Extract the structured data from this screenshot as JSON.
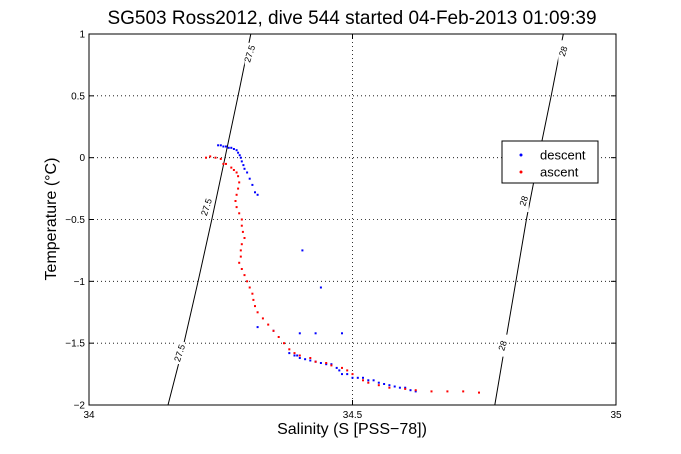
{
  "chart_data": {
    "type": "scatter",
    "title": "SG503 Ross2012, dive 544 started 04-Feb-2013 01:09:39",
    "xlabel": "Salinity (S [PSS−78])",
    "ylabel": "Temperature (°C)",
    "xlim": [
      34,
      35
    ],
    "ylim": [
      -2,
      1
    ],
    "x_ticks": [
      34,
      34.5,
      35
    ],
    "x_tick_labels": [
      "34",
      "34.5",
      "35"
    ],
    "y_ticks": [
      -2,
      -1.5,
      -1,
      -0.5,
      0,
      0.5,
      1
    ],
    "y_tick_labels": [
      "−2",
      "−1.5",
      "−1",
      "−0.5",
      "0",
      "0.5",
      "1"
    ],
    "grid": true,
    "legend_position": "right",
    "contours": [
      {
        "sigma": 27.5,
        "points": [
          [
            34.15,
            -2.0
          ],
          [
            34.18,
            -1.5
          ],
          [
            34.207,
            -1.0
          ],
          [
            34.233,
            -0.5
          ],
          [
            34.258,
            0.0
          ],
          [
            34.283,
            0.5
          ],
          [
            34.307,
            1.0
          ]
        ],
        "labels": [
          {
            "text": "27.5",
            "x": 34.172,
            "y": -1.58
          },
          {
            "text": "27.5",
            "x": 34.223,
            "y": -0.4
          },
          {
            "text": "27.5",
            "x": 34.305,
            "y": 0.84
          }
        ]
      },
      {
        "sigma": 28,
        "points": [
          [
            34.77,
            -2.0
          ],
          [
            34.79,
            -1.5
          ],
          [
            34.81,
            -1.0
          ],
          [
            34.83,
            -0.5
          ],
          [
            34.853,
            0.0
          ],
          [
            34.877,
            0.5
          ],
          [
            34.9,
            1.0
          ]
        ],
        "labels": [
          {
            "text": "28",
            "x": 34.785,
            "y": -1.52
          },
          {
            "text": "28",
            "x": 34.825,
            "y": -0.35
          },
          {
            "text": "28",
            "x": 34.9,
            "y": 0.86
          }
        ]
      }
    ],
    "series": [
      {
        "name": "descent",
        "color": "#0000ff",
        "points": [
          [
            34.245,
            0.1
          ],
          [
            34.25,
            0.1
          ],
          [
            34.255,
            0.09
          ],
          [
            34.26,
            0.09
          ],
          [
            34.265,
            0.08
          ],
          [
            34.27,
            0.08
          ],
          [
            34.275,
            0.07
          ],
          [
            34.28,
            0.06
          ],
          [
            34.283,
            0.04
          ],
          [
            34.286,
            0.02
          ],
          [
            34.288,
            0.0
          ],
          [
            34.29,
            -0.03
          ],
          [
            34.293,
            -0.06
          ],
          [
            34.295,
            -0.09
          ],
          [
            34.3,
            -0.12
          ],
          [
            34.305,
            -0.17
          ],
          [
            34.31,
            -0.22
          ],
          [
            34.315,
            -0.28
          ],
          [
            34.32,
            -0.3
          ],
          [
            34.405,
            -0.75
          ],
          [
            34.44,
            -1.05
          ],
          [
            34.32,
            -1.37
          ],
          [
            34.35,
            -1.4
          ],
          [
            34.4,
            -1.42
          ],
          [
            34.43,
            -1.42
          ],
          [
            34.48,
            -1.42
          ],
          [
            34.38,
            -1.58
          ],
          [
            34.39,
            -1.6
          ],
          [
            34.395,
            -1.6
          ],
          [
            34.4,
            -1.62
          ],
          [
            34.41,
            -1.63
          ],
          [
            34.42,
            -1.64
          ],
          [
            34.43,
            -1.65
          ],
          [
            34.44,
            -1.66
          ],
          [
            34.45,
            -1.67
          ],
          [
            34.46,
            -1.67
          ],
          [
            34.47,
            -1.7
          ],
          [
            34.475,
            -1.72
          ],
          [
            34.48,
            -1.75
          ],
          [
            34.49,
            -1.75
          ],
          [
            34.5,
            -1.78
          ],
          [
            34.51,
            -1.78
          ],
          [
            34.52,
            -1.78
          ],
          [
            34.53,
            -1.8
          ],
          [
            34.54,
            -1.8
          ],
          [
            34.55,
            -1.82
          ],
          [
            34.56,
            -1.83
          ],
          [
            34.57,
            -1.84
          ],
          [
            34.58,
            -1.85
          ],
          [
            34.59,
            -1.86
          ],
          [
            34.6,
            -1.86
          ],
          [
            34.61,
            -1.88
          ],
          [
            34.62,
            -1.89
          ]
        ]
      },
      {
        "name": "ascent",
        "color": "#ff0000",
        "points": [
          [
            34.222,
            0.0
          ],
          [
            34.23,
            0.01
          ],
          [
            34.24,
            0.0
          ],
          [
            34.25,
            -0.01
          ],
          [
            34.255,
            -0.05
          ],
          [
            34.26,
            -0.05
          ],
          [
            34.27,
            -0.08
          ],
          [
            34.275,
            -0.1
          ],
          [
            34.28,
            -0.12
          ],
          [
            34.283,
            -0.15
          ],
          [
            34.285,
            -0.2
          ],
          [
            34.283,
            -0.25
          ],
          [
            34.28,
            -0.3
          ],
          [
            34.278,
            -0.35
          ],
          [
            34.28,
            -0.4
          ],
          [
            34.285,
            -0.45
          ],
          [
            34.29,
            -0.5
          ],
          [
            34.29,
            -0.55
          ],
          [
            34.292,
            -0.6
          ],
          [
            34.295,
            -0.65
          ],
          [
            34.29,
            -0.7
          ],
          [
            34.288,
            -0.75
          ],
          [
            34.288,
            -0.8
          ],
          [
            34.285,
            -0.85
          ],
          [
            34.29,
            -0.9
          ],
          [
            34.295,
            -0.95
          ],
          [
            34.3,
            -1.0
          ],
          [
            34.305,
            -1.05
          ],
          [
            34.31,
            -1.1
          ],
          [
            34.312,
            -1.15
          ],
          [
            34.315,
            -1.2
          ],
          [
            34.32,
            -1.25
          ],
          [
            34.33,
            -1.3
          ],
          [
            34.34,
            -1.35
          ],
          [
            34.35,
            -1.4
          ],
          [
            34.36,
            -1.45
          ],
          [
            34.37,
            -1.5
          ],
          [
            34.38,
            -1.55
          ],
          [
            34.39,
            -1.58
          ],
          [
            34.4,
            -1.6
          ],
          [
            34.42,
            -1.62
          ],
          [
            34.43,
            -1.65
          ],
          [
            34.45,
            -1.66
          ],
          [
            34.46,
            -1.68
          ],
          [
            34.48,
            -1.7
          ],
          [
            34.49,
            -1.72
          ],
          [
            34.5,
            -1.75
          ],
          [
            34.52,
            -1.8
          ],
          [
            34.53,
            -1.82
          ],
          [
            34.55,
            -1.84
          ],
          [
            34.57,
            -1.86
          ],
          [
            34.6,
            -1.87
          ],
          [
            34.62,
            -1.88
          ],
          [
            34.65,
            -1.89
          ],
          [
            34.68,
            -1.89
          ],
          [
            34.71,
            -1.89
          ],
          [
            34.74,
            -1.9
          ]
        ]
      }
    ]
  }
}
